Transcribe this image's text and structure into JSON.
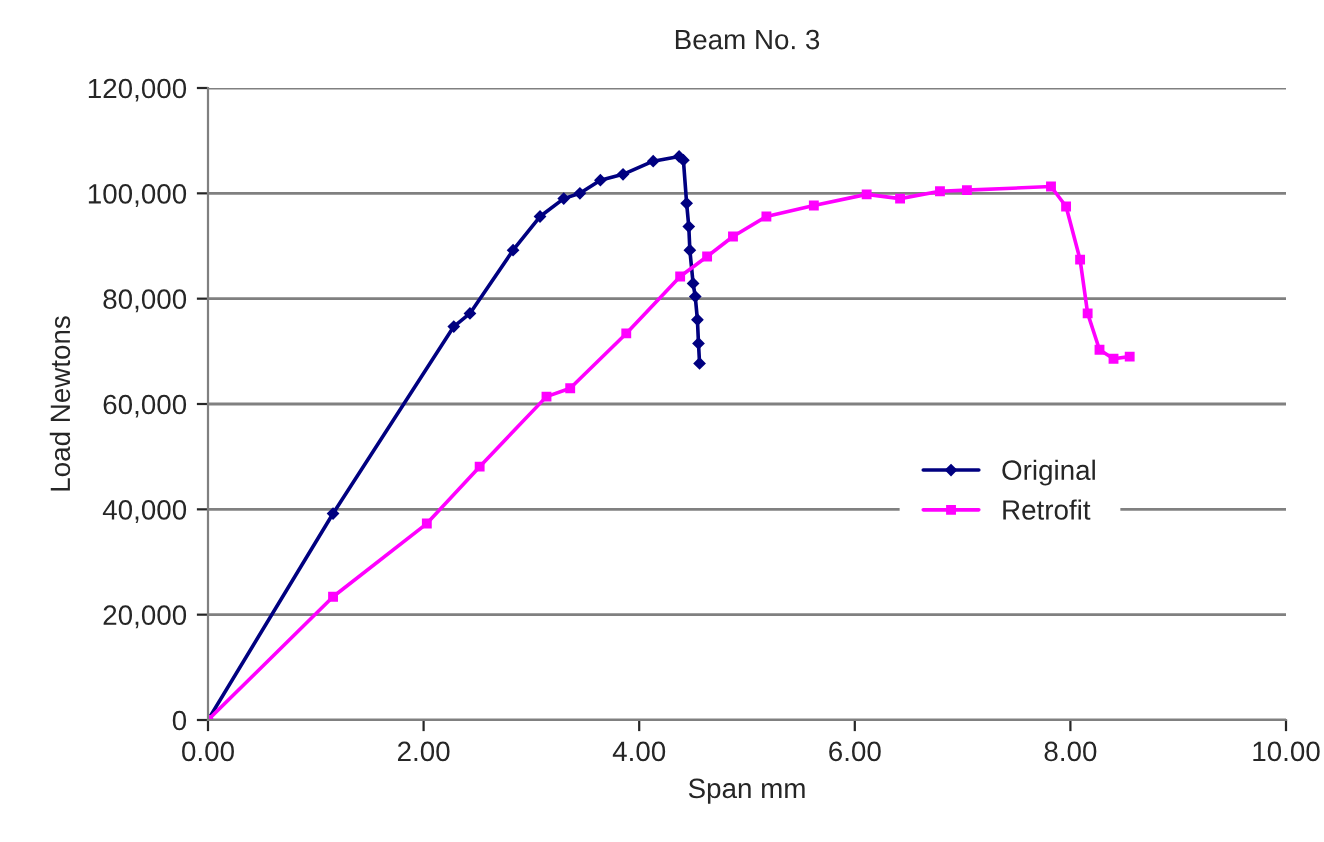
{
  "chart_data": {
    "type": "line",
    "title": "Beam No. 3",
    "xlabel": "Span mm",
    "ylabel": "Load Newtons",
    "xlim": [
      0,
      10
    ],
    "ylim": [
      0,
      120000
    ],
    "xticks": [
      {
        "value": 0,
        "label": "0.00"
      },
      {
        "value": 2,
        "label": "2.00"
      },
      {
        "value": 4,
        "label": "4.00"
      },
      {
        "value": 6,
        "label": "6.00"
      },
      {
        "value": 8,
        "label": "8.00"
      },
      {
        "value": 10,
        "label": "10.00"
      }
    ],
    "yticks": [
      {
        "value": 0,
        "label": "0"
      },
      {
        "value": 20000,
        "label": "20,000"
      },
      {
        "value": 40000,
        "label": "40,000"
      },
      {
        "value": 60000,
        "label": "60,000"
      },
      {
        "value": 80000,
        "label": "80,000"
      },
      {
        "value": 100000,
        "label": "100,000"
      },
      {
        "value": 120000,
        "label": "120,000"
      }
    ],
    "grid": "y",
    "legend": "right",
    "line_style": "solid",
    "series": [
      {
        "name": "Original",
        "color": "#000080",
        "marker": "diamond",
        "x": [
          0,
          1.16,
          2.28,
          2.43,
          2.83,
          3.08,
          3.3,
          3.45,
          3.64,
          3.85,
          4.13,
          4.37,
          4.41,
          4.44,
          4.46,
          4.47,
          4.5,
          4.52,
          4.54,
          4.55,
          4.56
        ],
        "values": [
          0,
          39200,
          74700,
          77200,
          89200,
          95600,
          99000,
          100000,
          102500,
          103600,
          106100,
          107000,
          106300,
          98100,
          93700,
          89200,
          82900,
          80400,
          76000,
          71500,
          67700
        ]
      },
      {
        "name": "Retrofit",
        "color": "#ff00ff",
        "marker": "square",
        "x": [
          0,
          1.16,
          2.03,
          2.52,
          3.14,
          3.36,
          3.88,
          4.38,
          4.63,
          4.87,
          5.18,
          5.62,
          6.11,
          6.42,
          6.79,
          7.04,
          7.82,
          7.96,
          8.09,
          8.16,
          8.27,
          8.4,
          8.55
        ],
        "values": [
          0,
          23400,
          37300,
          48100,
          61400,
          63000,
          73400,
          84200,
          88000,
          91800,
          95600,
          97700,
          99800,
          99000,
          100400,
          100600,
          101300,
          97500,
          87400,
          77200,
          70300,
          68600,
          69000
        ]
      }
    ]
  }
}
